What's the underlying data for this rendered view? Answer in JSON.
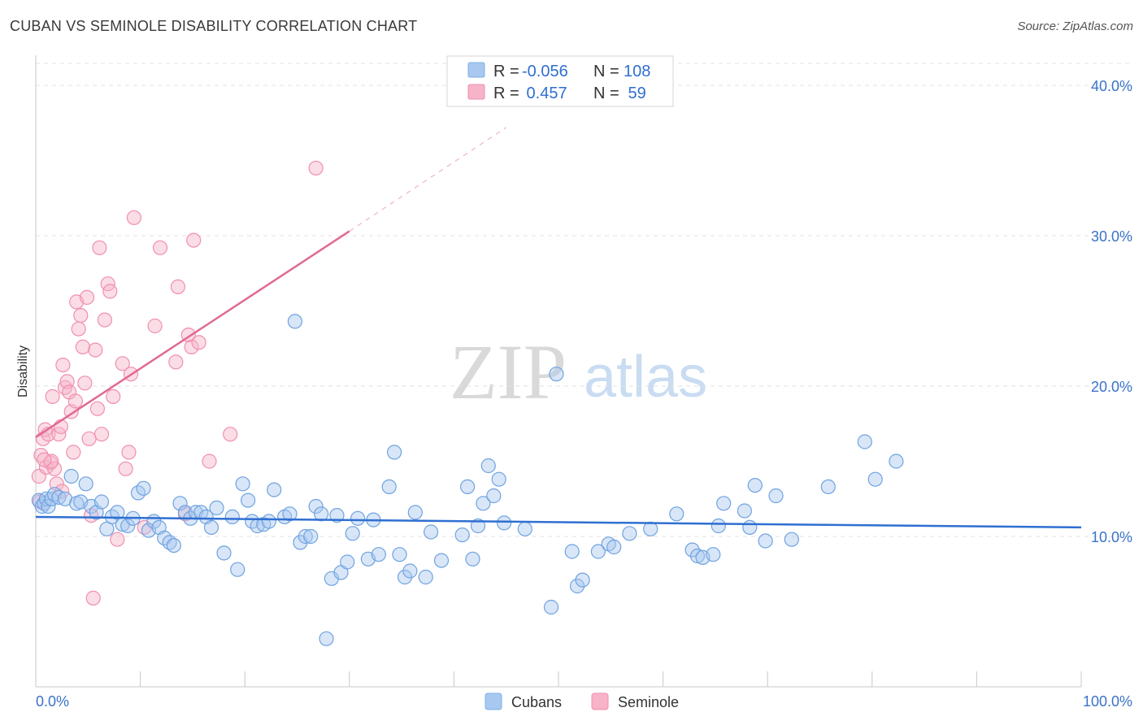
{
  "header": {
    "title": "CUBAN VS SEMINOLE DISABILITY CORRELATION CHART",
    "source": "Source: ZipAtlas.com"
  },
  "legend": {
    "rows": [
      {
        "r_label": "R =",
        "r_value": "-0.056",
        "n_label": "N =",
        "n_value": "108",
        "color": "#a8c8f0"
      },
      {
        "r_label": "R =",
        "r_value": " 0.457",
        "n_label": "N =",
        "n_value": " 59",
        "color": "#f7b3c8"
      }
    ]
  },
  "watermark": {
    "zip": "ZIP",
    "atlas": "atlas"
  },
  "chart_data": {
    "type": "scatter",
    "title": "CUBAN VS SEMINOLE DISABILITY CORRELATION CHART",
    "ylabel": "Disability",
    "xlabel": "",
    "xlim": [
      0,
      100
    ],
    "ylim": [
      0,
      42
    ],
    "x_tick_labels": [
      "0.0%",
      "100.0%"
    ],
    "y_ticks": [
      10,
      20,
      30,
      40
    ],
    "y_tick_labels": [
      "10.0%",
      "20.0%",
      "30.0%",
      "40.0%"
    ],
    "grid": true,
    "legend_position": "top-center",
    "colors": {
      "cubans": "#7fb0e8",
      "seminole": "#f5a3bd",
      "cubans_line": "#2f6fd1",
      "seminole_line": "#e06a93"
    },
    "series": [
      {
        "name": "Cubans",
        "trend": {
          "x": [
            0,
            100
          ],
          "y": [
            11.3,
            10.6
          ]
        },
        "points": [
          [
            0.3,
            12.4
          ],
          [
            0.6,
            12.0
          ],
          [
            0.8,
            12.2
          ],
          [
            1.0,
            12.5
          ],
          [
            1.2,
            12.0
          ],
          [
            1.5,
            12.5
          ],
          [
            1.8,
            12.8
          ],
          [
            2.2,
            12.6
          ],
          [
            2.8,
            12.5
          ],
          [
            3.4,
            14.0
          ],
          [
            3.9,
            12.2
          ],
          [
            4.3,
            12.3
          ],
          [
            4.8,
            13.5
          ],
          [
            5.3,
            12.0
          ],
          [
            5.8,
            11.6
          ],
          [
            6.3,
            12.3
          ],
          [
            6.8,
            10.5
          ],
          [
            7.3,
            11.3
          ],
          [
            7.8,
            11.6
          ],
          [
            8.3,
            10.8
          ],
          [
            8.8,
            10.7
          ],
          [
            9.3,
            11.2
          ],
          [
            9.8,
            12.9
          ],
          [
            10.3,
            13.2
          ],
          [
            10.8,
            10.4
          ],
          [
            11.3,
            11.0
          ],
          [
            11.8,
            10.6
          ],
          [
            12.3,
            9.9
          ],
          [
            12.8,
            9.6
          ],
          [
            13.2,
            9.4
          ],
          [
            13.8,
            12.2
          ],
          [
            14.3,
            11.6
          ],
          [
            14.8,
            11.2
          ],
          [
            15.3,
            11.6
          ],
          [
            15.8,
            11.6
          ],
          [
            16.3,
            11.3
          ],
          [
            16.8,
            10.6
          ],
          [
            17.3,
            11.9
          ],
          [
            18.0,
            8.9
          ],
          [
            18.8,
            11.3
          ],
          [
            19.3,
            7.8
          ],
          [
            19.8,
            13.5
          ],
          [
            20.3,
            12.4
          ],
          [
            20.7,
            11.0
          ],
          [
            21.2,
            10.7
          ],
          [
            21.8,
            10.8
          ],
          [
            22.3,
            11.0
          ],
          [
            22.8,
            13.1
          ],
          [
            23.8,
            11.3
          ],
          [
            24.3,
            11.5
          ],
          [
            24.8,
            24.3
          ],
          [
            25.3,
            9.6
          ],
          [
            25.8,
            10.0
          ],
          [
            26.3,
            10.0
          ],
          [
            26.8,
            12.0
          ],
          [
            27.3,
            11.5
          ],
          [
            27.8,
            3.2
          ],
          [
            28.3,
            7.2
          ],
          [
            28.8,
            11.4
          ],
          [
            29.2,
            7.6
          ],
          [
            29.8,
            8.3
          ],
          [
            30.3,
            10.2
          ],
          [
            30.8,
            11.2
          ],
          [
            31.8,
            8.5
          ],
          [
            32.3,
            11.1
          ],
          [
            32.8,
            8.8
          ],
          [
            33.8,
            13.3
          ],
          [
            34.3,
            15.6
          ],
          [
            34.8,
            8.8
          ],
          [
            35.3,
            7.3
          ],
          [
            35.8,
            7.7
          ],
          [
            36.3,
            11.6
          ],
          [
            37.3,
            7.3
          ],
          [
            37.8,
            10.3
          ],
          [
            38.8,
            8.4
          ],
          [
            40.8,
            10.1
          ],
          [
            41.3,
            13.3
          ],
          [
            41.8,
            8.5
          ],
          [
            42.3,
            10.7
          ],
          [
            42.8,
            12.2
          ],
          [
            43.3,
            14.7
          ],
          [
            43.8,
            12.7
          ],
          [
            44.3,
            13.8
          ],
          [
            44.8,
            10.9
          ],
          [
            46.8,
            10.5
          ],
          [
            49.3,
            5.3
          ],
          [
            49.8,
            20.8
          ],
          [
            51.3,
            9.0
          ],
          [
            51.8,
            6.7
          ],
          [
            52.3,
            7.1
          ],
          [
            53.8,
            9.0
          ],
          [
            54.8,
            9.5
          ],
          [
            55.3,
            9.3
          ],
          [
            56.8,
            10.2
          ],
          [
            58.8,
            10.5
          ],
          [
            61.3,
            11.5
          ],
          [
            62.8,
            9.1
          ],
          [
            63.3,
            8.7
          ],
          [
            63.8,
            8.6
          ],
          [
            64.8,
            8.8
          ],
          [
            65.3,
            10.7
          ],
          [
            65.8,
            12.2
          ],
          [
            67.8,
            11.7
          ],
          [
            68.3,
            10.6
          ],
          [
            68.8,
            13.4
          ],
          [
            69.8,
            9.7
          ],
          [
            70.8,
            12.7
          ],
          [
            72.3,
            9.8
          ],
          [
            75.8,
            13.3
          ],
          [
            79.3,
            16.3
          ],
          [
            80.3,
            13.8
          ],
          [
            82.3,
            15.0
          ]
        ]
      },
      {
        "name": "Seminole",
        "trend": {
          "x": [
            0,
            30
          ],
          "y": [
            16.6,
            30.3
          ]
        },
        "trend_extension": {
          "x": [
            30,
            45
          ],
          "y": [
            30.3,
            37.2
          ]
        },
        "points": [
          [
            0.3,
            14.0
          ],
          [
            0.5,
            15.4
          ],
          [
            0.7,
            16.5
          ],
          [
            0.9,
            17.1
          ],
          [
            1.0,
            14.6
          ],
          [
            1.2,
            16.8
          ],
          [
            1.4,
            14.9
          ],
          [
            1.6,
            19.3
          ],
          [
            1.8,
            14.5
          ],
          [
            2.0,
            13.5
          ],
          [
            2.2,
            16.8
          ],
          [
            2.4,
            17.3
          ],
          [
            2.5,
            13.0
          ],
          [
            2.6,
            21.4
          ],
          [
            2.8,
            19.9
          ],
          [
            3.0,
            20.3
          ],
          [
            3.2,
            19.6
          ],
          [
            3.4,
            18.3
          ],
          [
            3.6,
            15.6
          ],
          [
            3.8,
            19.0
          ],
          [
            3.9,
            25.6
          ],
          [
            4.1,
            23.8
          ],
          [
            4.3,
            24.7
          ],
          [
            4.5,
            22.6
          ],
          [
            4.7,
            20.2
          ],
          [
            4.9,
            25.9
          ],
          [
            5.1,
            16.5
          ],
          [
            5.3,
            11.4
          ],
          [
            5.5,
            5.9
          ],
          [
            5.7,
            22.4
          ],
          [
            5.9,
            18.5
          ],
          [
            6.1,
            29.2
          ],
          [
            6.3,
            16.8
          ],
          [
            6.6,
            24.4
          ],
          [
            6.9,
            26.8
          ],
          [
            7.1,
            26.3
          ],
          [
            7.4,
            19.3
          ],
          [
            7.8,
            9.8
          ],
          [
            8.3,
            21.5
          ],
          [
            8.6,
            14.5
          ],
          [
            8.9,
            15.6
          ],
          [
            9.1,
            20.8
          ],
          [
            9.4,
            31.2
          ],
          [
            10.4,
            10.6
          ],
          [
            11.4,
            24.0
          ],
          [
            11.9,
            29.2
          ],
          [
            13.4,
            21.6
          ],
          [
            13.6,
            26.6
          ],
          [
            14.3,
            11.5
          ],
          [
            14.6,
            23.4
          ],
          [
            14.9,
            22.6
          ],
          [
            15.1,
            29.7
          ],
          [
            15.6,
            22.9
          ],
          [
            16.6,
            15.0
          ],
          [
            18.6,
            16.8
          ],
          [
            26.8,
            34.5
          ],
          [
            1.5,
            15.0
          ],
          [
            0.8,
            15.1
          ],
          [
            0.4,
            12.3
          ]
        ]
      }
    ]
  },
  "bottom_legend": {
    "items": [
      {
        "label": "Cubans",
        "color": "#a8c8f0"
      },
      {
        "label": "Seminole",
        "color": "#f7b3c8"
      }
    ]
  }
}
